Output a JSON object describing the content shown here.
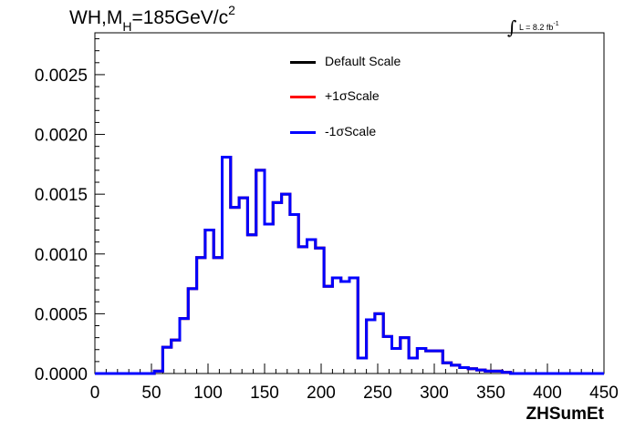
{
  "chart_data": {
    "type": "step-histogram",
    "title_parts": {
      "a": "WH,M",
      "sub": "H",
      "b": "=185GeV/c",
      "sup": "2"
    },
    "lumi": {
      "prefix": "L = 8.2 fb",
      "sup": "-1"
    },
    "xlabel": "ZHSumEt",
    "ylabel": "",
    "xlim": [
      0,
      450
    ],
    "ylim": [
      0,
      0.00285
    ],
    "xticks": [
      0,
      50,
      100,
      150,
      200,
      250,
      300,
      350,
      400,
      450
    ],
    "xtick_labels": [
      "0",
      "50",
      "100",
      "150",
      "200",
      "250",
      "300",
      "350",
      "400",
      "450"
    ],
    "yticks": [
      0,
      0.0005,
      0.001,
      0.0015,
      0.002,
      0.0025
    ],
    "ytick_labels": [
      "0.0000",
      "0.0005",
      "0.0010",
      "0.0015",
      "0.0020",
      "0.0025"
    ],
    "bin_width": 7.5,
    "bin_edges_start": 0,
    "bin_values": [
      0,
      0,
      0,
      0,
      0,
      0,
      0,
      2e-05,
      0.00022,
      0.00028,
      0.00046,
      0.00071,
      0.00097,
      0.0012,
      0.00097,
      0.00181,
      0.00139,
      0.00147,
      0.00116,
      0.0017,
      0.00125,
      0.00143,
      0.0015,
      0.00133,
      0.00106,
      0.00112,
      0.00105,
      0.00073,
      0.0008,
      0.00077,
      0.0008,
      0.00013,
      0.00045,
      0.0005,
      0.00031,
      0.00021,
      0.0003,
      0.00013,
      0.00021,
      0.00019,
      0.00019,
      9e-05,
      7e-05,
      5e-05,
      4e-05,
      3e-05,
      2e-05,
      2e-05,
      1e-05,
      0,
      0,
      0,
      0,
      0,
      0,
      0,
      0,
      0,
      0,
      0
    ],
    "series": [
      {
        "name": "Default Scale",
        "color": "#000000"
      },
      {
        "name": "+1σScale",
        "color": "#ff0000"
      },
      {
        "name": "-1σScale",
        "color": "#0000ff"
      }
    ],
    "legend_position": "top-center",
    "grid": false
  }
}
